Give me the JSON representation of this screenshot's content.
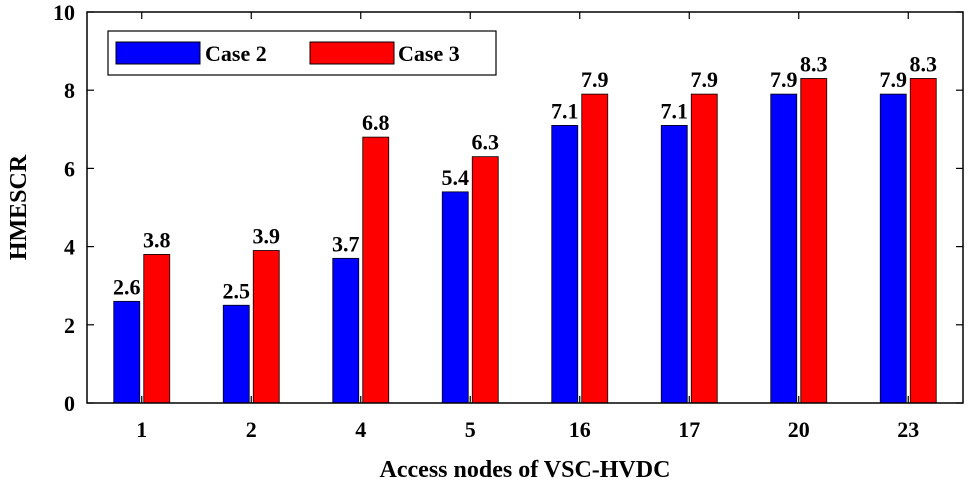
{
  "chart_data": {
    "type": "bar",
    "title": "",
    "xlabel": "Access nodes of VSC-HVDC",
    "ylabel": "HMESCR",
    "categories": [
      "1",
      "2",
      "4",
      "5",
      "16",
      "17",
      "20",
      "23"
    ],
    "ylim": [
      0,
      10
    ],
    "yticks": [
      0,
      2,
      4,
      6,
      8,
      10
    ],
    "grid": false,
    "legend_position": "top-left",
    "series": [
      {
        "name": "Case 2",
        "color": "#0000ff",
        "values": [
          2.6,
          2.5,
          3.7,
          5.4,
          7.1,
          7.1,
          7.9,
          7.9
        ]
      },
      {
        "name": "Case 3",
        "color": "#ff0000",
        "values": [
          3.8,
          3.9,
          6.8,
          6.3,
          7.9,
          7.9,
          8.3,
          8.3
        ]
      }
    ]
  }
}
